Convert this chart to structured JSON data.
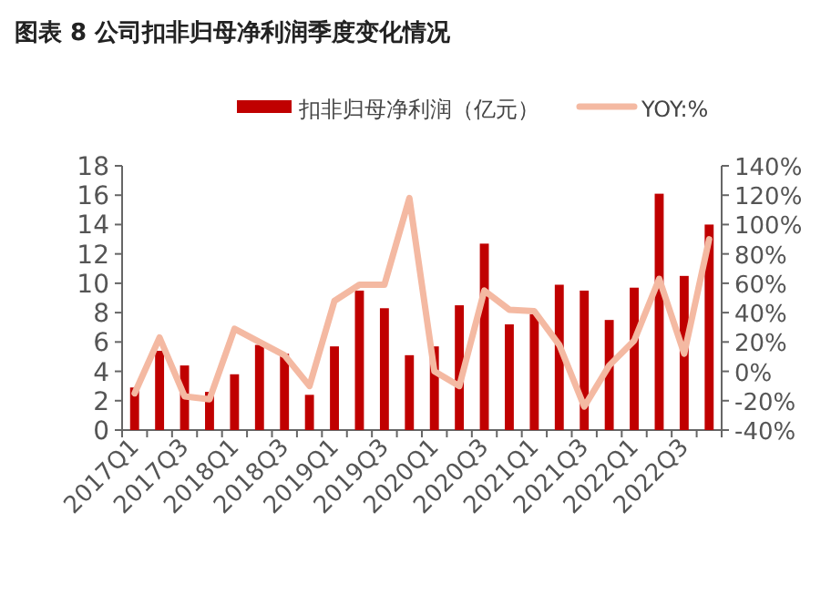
{
  "chart_data": {
    "type": "bar",
    "title": "图表 8   公司扣非归母净利润季度变化情况",
    "categories": [
      "2017Q1",
      null,
      "2017Q3",
      null,
      "2018Q1",
      null,
      "2018Q3",
      null,
      "2019Q1",
      null,
      "2019Q3",
      null,
      "2020Q1",
      null,
      "2020Q3",
      null,
      "2021Q1",
      null,
      "2021Q3",
      null,
      "2022Q1",
      null,
      "2022Q3",
      null
    ],
    "series": [
      {
        "name": "扣非归母净利润（亿元）",
        "color": "#c00000",
        "values": [
          2.9,
          5.4,
          4.4,
          2.6,
          3.8,
          5.8,
          5.2,
          2.4,
          5.7,
          9.5,
          8.3,
          5.1,
          5.7,
          8.5,
          12.7,
          7.2,
          7.9,
          9.9,
          9.5,
          7.5,
          9.7,
          16.1,
          10.5,
          14.0
        ]
      },
      {
        "name": "YOY:%",
        "type": "line",
        "axis": "y2",
        "color": "#f4b9a2",
        "values": [
          -15,
          23,
          -17,
          -19,
          29,
          20,
          11,
          -10,
          48,
          59,
          59,
          118,
          0,
          -10,
          55,
          42,
          41,
          18,
          -24,
          4,
          21,
          63,
          12,
          90
        ]
      }
    ],
    "ylim": [
      0,
      18
    ],
    "yticks": [
      0,
      2,
      4,
      6,
      8,
      10,
      12,
      14,
      16,
      18
    ],
    "y2lim": [
      -40,
      140
    ],
    "y2ticks": [
      {
        "value": -40,
        "label": "-40%"
      },
      {
        "value": -20,
        "label": "-20%"
      },
      {
        "value": 0,
        "label": "0%"
      },
      {
        "value": 20,
        "label": "20%"
      },
      {
        "value": 40,
        "label": "40%"
      },
      {
        "value": 60,
        "label": "60%"
      },
      {
        "value": 80,
        "label": "80%"
      },
      {
        "value": 100,
        "label": "100%"
      },
      {
        "value": 120,
        "label": "120%"
      },
      {
        "value": 140,
        "label": "140%"
      }
    ],
    "legend": "top",
    "grid": false
  }
}
